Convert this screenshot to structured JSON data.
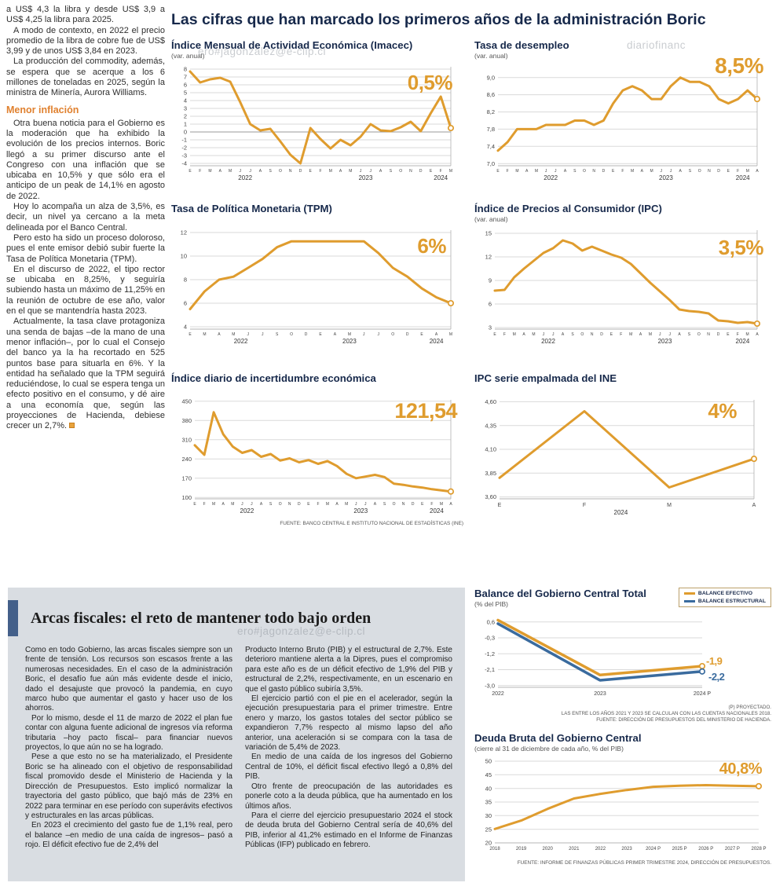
{
  "colors": {
    "accent_orange": "#DF9C2E",
    "accent_blue": "#3A6B9E",
    "navy": "#17294B",
    "panel_gray": "#D9DDE2",
    "subhead_orange": "#E0812F"
  },
  "watermarks": {
    "top_left": "ero#jagonzalez@e-clip.cl",
    "top_right": "diariofinanc",
    "bottom": "ero#jagonzalez@e-clip.cl"
  },
  "header": {
    "title": "Las cifras que han marcado los primeros años de la administración Boric"
  },
  "left_article": {
    "paragraphs_top": [
      "a US$ 4,3 la libra y desde US$ 3,9 a US$ 4,25 la libra para 2025.",
      "A modo de contexto, en 2022 el precio promedio de la libra de cobre fue de US$ 3,99 y de unos US$ 3,84 en 2023.",
      "La producción del commodity, además, se espera que se acerque a los 6 millones de toneladas en 2025, según la ministra de Minería, Aurora Williams."
    ],
    "subhead": "Menor inflación",
    "paragraphs_bottom": [
      "Otra buena noticia para el Gobierno es la moderación que ha exhibido la evolución de los precios internos. Boric llegó a su primer discurso ante el Congreso con una inflación que se ubicaba en 10,5% y que sólo era el anticipo de un peak de 14,1% en agosto de 2022.",
      "Hoy lo acompaña un alza de 3,5%, es decir, un nivel ya cercano a la meta delineada por el Banco Central.",
      "Pero esto ha sido un proceso doloroso, pues el ente emisor debió subir fuerte la Tasa de Política Monetaria (TPM).",
      "En el discurso de 2022, el tipo rector se ubicaba en 8,25%, y seguiría subiendo hasta un máximo de 11,25% en la reunión de octubre de ese año, valor en el que se mantendría hasta 2023.",
      "Actualmente, la tasa clave protagoniza una senda de bajas –de la mano de una menor inflación–, por lo cual el Consejo del banco ya la ha recortado en 525 puntos base para situarla en 6%. Y la entidad ha señalado que la TPM seguirá reduciéndose, lo cual se espera tenga un efecto positivo en el consumo, y dé aire a una economía que, según las proyecciones de Hacienda, debiese crecer un 2,7%."
    ]
  },
  "fiscal": {
    "headline": "Arcas fiscales: el reto de mantener todo bajo orden",
    "col1": [
      "Como en todo Gobierno, las arcas fiscales siempre son un frente de tensión. Los recursos son escasos frente a las numerosas necesidades. En el caso de la administración Boric, el desafío fue aún más evidente desde el inicio, dado el desajuste que provocó la pandemia, en cuyo marco hubo que aumentar el gasto y hacer uso de los ahorros.",
      "Por lo mismo, desde el 11 de marzo de 2022 el plan fue contar con alguna fuente adicional de ingresos vía reforma tributaria –hoy pacto fiscal– para financiar nuevos proyectos, lo que aún no se ha logrado.",
      "Pese a que esto no se ha materializado, el Presidente Boric se ha alineado con el objetivo de responsabilidad fiscal promovido desde el Ministerio de Hacienda y la Dirección de Presupuestos. Esto implicó normalizar la trayectoria del gasto público, que bajó más de 23% en 2022 para terminar en ese período con superávits efectivos y estructurales en las arcas públicas.",
      "En 2023 el crecimiento del gasto fue de 1,1% real, pero el balance –en medio de una caída de ingresos– pasó a rojo. El déficit efectivo fue de 2,4% del"
    ],
    "col2": [
      "Producto Interno Bruto (PIB) y el estructural de 2,7%. Este deterioro mantiene alerta a la Dipres, pues el compromiso para este año es de un déficit efectivo de 1,9% del PIB y estructural de 2,2%, respectivamente, en un escenario en que el gasto público subiría 3,5%.",
      "El ejercicio partió con el pie en el acelerador, según la ejecución presupuestaria para el primer trimestre. Entre enero y marzo, los gastos totales del sector público se expandieron 7,7% respecto al mismo lapso del año anterior, una aceleración si se compara con la tasa de variación de 5,4% de 2023.",
      "En medio de una caída de los ingresos del Gobierno Central de 10%, el déficit fiscal efectivo llegó a 0,8% del PIB.",
      "Otro frente de preocupación de las autoridades es ponerle coto a la deuda pública, que ha aumentado en los últimos años.",
      "Para el cierre del ejercicio presupuestario 2024 el stock de deuda bruta del Gobierno Central sería de 40,6% del PIB, inferior al 41,2% estimado en el Informe de Finanzas Públicas (IFP) publicado en febrero."
    ]
  },
  "chart_data": [
    {
      "id": "imacec",
      "type": "line",
      "title": "Índice Mensual de Actividad Económica (Imacec)",
      "subtitle": "(var. anual)",
      "callout": "0,5%",
      "ylim": [
        -4.3,
        8.3
      ],
      "yticks": [
        {
          "v": 8,
          "l": "8"
        },
        {
          "v": 7,
          "l": "7"
        },
        {
          "v": 6,
          "l": "6"
        },
        {
          "v": 5,
          "l": "5"
        },
        {
          "v": 4,
          "l": "4"
        },
        {
          "v": 3,
          "l": "3"
        },
        {
          "v": 2,
          "l": "2"
        },
        {
          "v": 1,
          "l": "1"
        },
        {
          "v": 0,
          "l": "0"
        },
        {
          "v": -1,
          "l": "-1"
        },
        {
          "v": -2,
          "l": "-2"
        },
        {
          "v": -3,
          "l": "-3"
        },
        {
          "v": -4,
          "l": "-4"
        }
      ],
      "x": [
        "E",
        "F",
        "M",
        "A",
        "M",
        "J",
        "J",
        "A",
        "S",
        "O",
        "N",
        "D",
        "E",
        "F",
        "M",
        "A",
        "M",
        "J",
        "J",
        "A",
        "S",
        "O",
        "N",
        "D",
        "E",
        "F",
        "M"
      ],
      "years": [
        {
          "label": "2022",
          "c": 5.5
        },
        {
          "label": "2023",
          "c": 17.5
        },
        {
          "label": "2024",
          "c": 25
        }
      ],
      "series": [
        {
          "name": "Imacec var. anual %",
          "color": "#DF9C2E",
          "w": 3,
          "values": [
            7.7,
            6.3,
            6.7,
            6.9,
            6.4,
            3.8,
            1.0,
            0.2,
            0.4,
            -1.2,
            -2.9,
            -4.0,
            0.5,
            -0.9,
            -2.1,
            -1.0,
            -1.7,
            -0.6,
            1.0,
            0.2,
            0.1,
            0.6,
            1.3,
            0.1,
            2.4,
            4.5,
            0.5
          ]
        }
      ]
    },
    {
      "id": "desempleo",
      "type": "line",
      "title": "Tasa de desempleo",
      "subtitle": "(var. anual)",
      "callout": "8,5%",
      "ylim": [
        6.95,
        9.25
      ],
      "yticks": [
        {
          "v": 9.0,
          "l": "9,0"
        },
        {
          "v": 8.6,
          "l": "8,6"
        },
        {
          "v": 8.2,
          "l": "8,2"
        },
        {
          "v": 7.8,
          "l": "7,8"
        },
        {
          "v": 7.4,
          "l": "7,4"
        },
        {
          "v": 7.0,
          "l": "7,0"
        }
      ],
      "x": [
        "E",
        "F",
        "M",
        "A",
        "M",
        "J",
        "J",
        "A",
        "S",
        "O",
        "N",
        "D",
        "E",
        "F",
        "M",
        "A",
        "M",
        "J",
        "J",
        "A",
        "S",
        "O",
        "N",
        "D",
        "E",
        "F",
        "M",
        "A"
      ],
      "years": [
        {
          "label": "2022",
          "c": 5.5
        },
        {
          "label": "2023",
          "c": 17.5
        },
        {
          "label": "2024",
          "c": 25.5
        }
      ],
      "series": [
        {
          "name": "Tasa de desempleo %",
          "color": "#DF9C2E",
          "w": 3,
          "values": [
            7.3,
            7.5,
            7.8,
            7.8,
            7.8,
            7.9,
            7.9,
            7.9,
            8.0,
            8.0,
            7.9,
            8.0,
            8.4,
            8.7,
            8.8,
            8.7,
            8.5,
            8.5,
            8.8,
            9.0,
            8.9,
            8.9,
            8.8,
            8.5,
            8.4,
            8.5,
            8.7,
            8.5
          ]
        }
      ]
    },
    {
      "id": "tpm",
      "type": "line",
      "title": "Tasa de Política Monetaria (TPM)",
      "subtitle": "",
      "callout": "6%",
      "ylim": [
        3.8,
        12.2
      ],
      "yticks": [
        {
          "v": 12,
          "l": "12"
        },
        {
          "v": 10,
          "l": "10"
        },
        {
          "v": 8,
          "l": "8"
        },
        {
          "v": 6,
          "l": "6"
        },
        {
          "v": 4,
          "l": "4"
        }
      ],
      "x": [
        "E",
        "M",
        "A",
        "M",
        "J",
        "J",
        "S",
        "O",
        "D",
        "E",
        "A",
        "M",
        "J",
        "J",
        "O",
        "D",
        "E",
        "A",
        "M"
      ],
      "years": [
        {
          "label": "2022",
          "c": 3.5
        },
        {
          "label": "2023",
          "c": 11
        },
        {
          "label": "2024",
          "c": 17
        }
      ],
      "series": [
        {
          "name": "TPM %",
          "color": "#DF9C2E",
          "w": 3,
          "values": [
            5.5,
            7.0,
            8.0,
            8.25,
            9.0,
            9.75,
            10.75,
            11.25,
            11.25,
            11.25,
            11.25,
            11.25,
            11.25,
            10.25,
            9.0,
            8.25,
            7.25,
            6.5,
            6.0
          ]
        }
      ]
    },
    {
      "id": "ipc",
      "type": "line",
      "title": "Índice de Precios al Consumidor (IPC)",
      "subtitle": "(var. anual)",
      "callout": "3,5%",
      "ylim": [
        2.8,
        15.4
      ],
      "yticks": [
        {
          "v": 15,
          "l": "15"
        },
        {
          "v": 12,
          "l": "12"
        },
        {
          "v": 9,
          "l": "9"
        },
        {
          "v": 6,
          "l": "6"
        },
        {
          "v": 3,
          "l": "3"
        }
      ],
      "x": [
        "E",
        "F",
        "M",
        "A",
        "M",
        "J",
        "J",
        "A",
        "S",
        "O",
        "N",
        "D",
        "E",
        "F",
        "M",
        "A",
        "M",
        "J",
        "J",
        "A",
        "S",
        "O",
        "N",
        "D",
        "E",
        "F",
        "M",
        "A"
      ],
      "years": [
        {
          "label": "2022",
          "c": 5.5
        },
        {
          "label": "2023",
          "c": 17.5
        },
        {
          "label": "2024",
          "c": 25.5
        }
      ],
      "series": [
        {
          "name": "IPC var. anual %",
          "color": "#DF9C2E",
          "w": 3,
          "values": [
            7.7,
            7.8,
            9.4,
            10.5,
            11.5,
            12.5,
            13.1,
            14.1,
            13.7,
            12.8,
            13.3,
            12.8,
            12.3,
            11.9,
            11.1,
            9.9,
            8.7,
            7.6,
            6.5,
            5.3,
            5.1,
            5.0,
            4.8,
            3.9,
            3.8,
            3.6,
            3.7,
            3.5
          ]
        }
      ]
    },
    {
      "id": "incertidumbre",
      "type": "line",
      "title": "Índice diario de incertidumbre económica",
      "subtitle": "",
      "callout": "121,54",
      "source": "FUENTE: BANCO CENTRAL E INSTITUTO NACIONAL DE ESTADÍSTICAS (INE)",
      "ylim": [
        95,
        455
      ],
      "yticks": [
        {
          "v": 450,
          "l": "450"
        },
        {
          "v": 380,
          "l": "380"
        },
        {
          "v": 310,
          "l": "310"
        },
        {
          "v": 240,
          "l": "240"
        },
        {
          "v": 170,
          "l": "170"
        },
        {
          "v": 100,
          "l": "100"
        }
      ],
      "x": [
        "E",
        "F",
        "M",
        "A",
        "M",
        "J",
        "J",
        "A",
        "S",
        "O",
        "N",
        "D",
        "E",
        "F",
        "M",
        "A",
        "M",
        "J",
        "J",
        "A",
        "S",
        "O",
        "N",
        "D",
        "E",
        "F",
        "M",
        "A"
      ],
      "years": [
        {
          "label": "2022",
          "c": 5.5
        },
        {
          "label": "2023",
          "c": 17.5
        },
        {
          "label": "2024",
          "c": 25.5
        }
      ],
      "series": [
        {
          "name": "Incertidumbre económica",
          "color": "#DF9C2E",
          "w": 3,
          "values": [
            290,
            255,
            410,
            330,
            285,
            262,
            272,
            248,
            258,
            234,
            242,
            228,
            236,
            222,
            232,
            214,
            186,
            170,
            176,
            182,
            174,
            150,
            146,
            140,
            136,
            130,
            126,
            121.54
          ]
        }
      ]
    },
    {
      "id": "ipc_ine",
      "type": "line",
      "title": "IPC serie empalmada del INE",
      "subtitle": "",
      "callout": "4%",
      "ylim": [
        3.58,
        4.62
      ],
      "yticks": [
        {
          "v": 4.6,
          "l": "4,60"
        },
        {
          "v": 4.35,
          "l": "4,35"
        },
        {
          "v": 4.1,
          "l": "4,10"
        },
        {
          "v": 3.85,
          "l": "3,85"
        },
        {
          "v": 3.6,
          "l": "3,60"
        }
      ],
      "x": [
        "E",
        "F",
        "M",
        "A"
      ],
      "years": [
        {
          "label": "2024",
          "c": 1.43
        }
      ],
      "series": [
        {
          "name": "IPC serie empalmada %",
          "color": "#DF9C2E",
          "w": 3,
          "values": [
            3.8,
            4.5,
            3.7,
            4.0
          ]
        }
      ]
    },
    {
      "id": "balance",
      "type": "line",
      "title": "Balance del Gobierno Central Total",
      "subtitle": "(% del PIB)",
      "legend": [
        "BALANCE EFECTIVO",
        "BALANCE ESTRUCTURAL"
      ],
      "callouts": [
        "-1,9",
        "-2,2"
      ],
      "footnotes": [
        "(P) PROYECTADO.",
        "LAS ENTRE LOS AÑOS 2021 Y 2023 SE CALCULAN CON LAS CUENTAS NACIONALES 2018.",
        "FUENTE: DIRECCIÓN DE PRESUPUESTOS DEL MINISTERIO DE HACIENDA."
      ],
      "ylim": [
        -3.1,
        0.9
      ],
      "yticks": [
        {
          "v": 0.6,
          "l": "0,6"
        },
        {
          "v": -0.3,
          "l": "-0,3"
        },
        {
          "v": -1.2,
          "l": "-1,2"
        },
        {
          "v": -2.1,
          "l": "-2,1"
        },
        {
          "v": -3.0,
          "l": "-3,0"
        }
      ],
      "x": [
        "2022",
        "2023",
        "2024 P"
      ],
      "years": [],
      "series": [
        {
          "name": "Balance efectivo",
          "color": "#DF9C2E",
          "w": 3.5,
          "values": [
            0.7,
            -2.4,
            -1.9
          ]
        },
        {
          "name": "Balance estructural",
          "color": "#3A6B9E",
          "w": 3.5,
          "values": [
            0.5,
            -2.7,
            -2.2
          ]
        }
      ]
    },
    {
      "id": "deuda",
      "type": "line",
      "title": "Deuda Bruta del Gobierno Central",
      "subtitle": "(cierre al 31 de diciembre de cada año, % del PIB)",
      "callout": "40,8%",
      "source": "FUENTE: INFORME DE FINANZAS PÚBLICAS PRIMER TRIMESTRE 2024, DIRECCIÓN DE PRESUPUESTOS.",
      "ylim": [
        20,
        50
      ],
      "yticks": [
        {
          "v": 50,
          "l": "50"
        },
        {
          "v": 45,
          "l": "45"
        },
        {
          "v": 40,
          "l": "40"
        },
        {
          "v": 35,
          "l": "35"
        },
        {
          "v": 30,
          "l": "30"
        },
        {
          "v": 25,
          "l": "25"
        },
        {
          "v": 20,
          "l": "20"
        }
      ],
      "x": [
        "2018",
        "2019",
        "2020",
        "2021",
        "2022",
        "2023",
        "2024 P",
        "2025 P",
        "2026 P",
        "2027 P",
        "2028 P"
      ],
      "years": [],
      "series": [
        {
          "name": "Deuda bruta % del PIB",
          "color": "#DF9C2E",
          "w": 3,
          "values": [
            25.1,
            28.2,
            32.5,
            36.3,
            38.0,
            39.4,
            40.6,
            41.0,
            41.2,
            41.0,
            40.8
          ]
        }
      ]
    }
  ]
}
